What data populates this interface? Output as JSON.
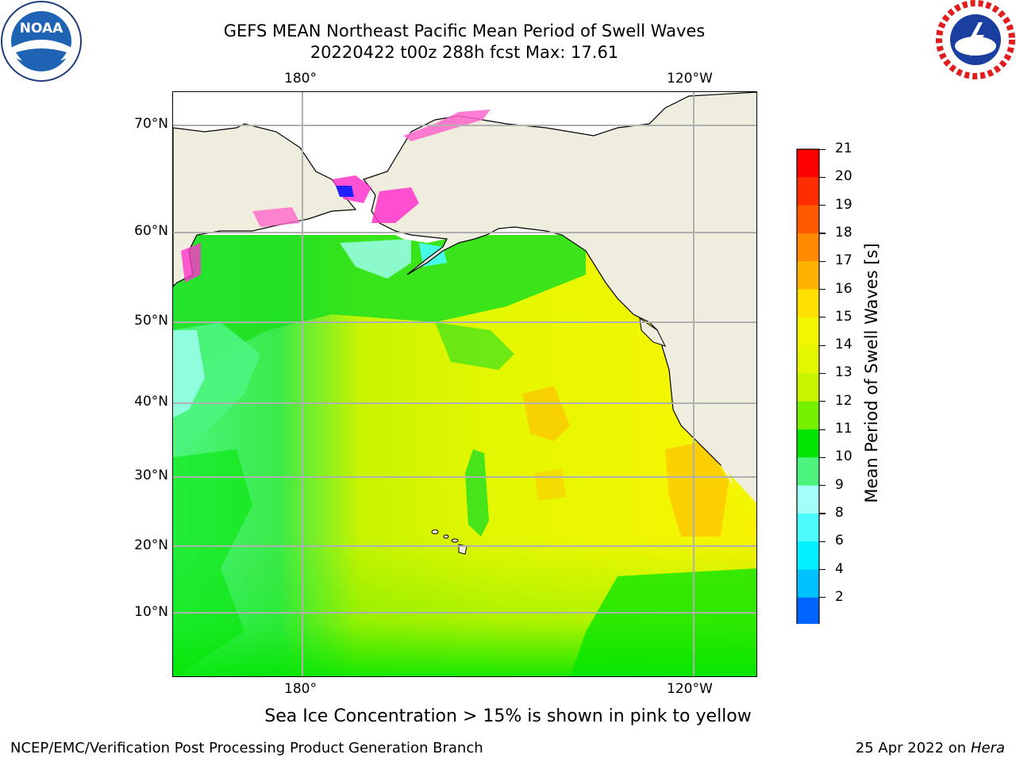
{
  "header": {
    "title_line1": "GEFS MEAN Northeast Pacific Mean Period of Swell Waves",
    "title_line2": "20220422 t00z 288h fcst   Max: 17.61"
  },
  "logos": {
    "left": "NOAA",
    "right": "NATIONAL WEATHER SERVICE"
  },
  "map": {
    "lon_labels_top": [
      "180°",
      "120°W"
    ],
    "lon_labels_bottom": [
      "180°",
      "120°W"
    ],
    "lat_labels": [
      "70°N",
      "60°N",
      "50°N",
      "40°N",
      "30°N",
      "20°N",
      "10°N"
    ],
    "land_color": "#efedde",
    "grid_color": "#b0b0b0"
  },
  "colorbar": {
    "label": "Mean Period of Swell Waves [s]",
    "ticks": [
      "21",
      "20",
      "19",
      "18",
      "17",
      "16",
      "15",
      "14",
      "13",
      "12",
      "11",
      "10",
      "9",
      "8",
      "6",
      "4",
      "2"
    ],
    "colors": [
      "#ff0000",
      "#ff2e00",
      "#ff5a00",
      "#ff8a00",
      "#ffb300",
      "#ffe000",
      "#f2f700",
      "#e4f700",
      "#c8f400",
      "#74f000",
      "#00e600",
      "#4df57f",
      "#a3fff7",
      "#4dfcff",
      "#00f0ff",
      "#00c2ff",
      "#0064ff"
    ],
    "extend_color": "#0000f5"
  },
  "caption": "Sea Ice Concentration > 15% is shown in pink to yellow",
  "footer": {
    "left": "NCEP/EMC/Verification Post Processing Product Generation Branch",
    "date": "25 Apr 2022 on",
    "machine": "Hera"
  }
}
